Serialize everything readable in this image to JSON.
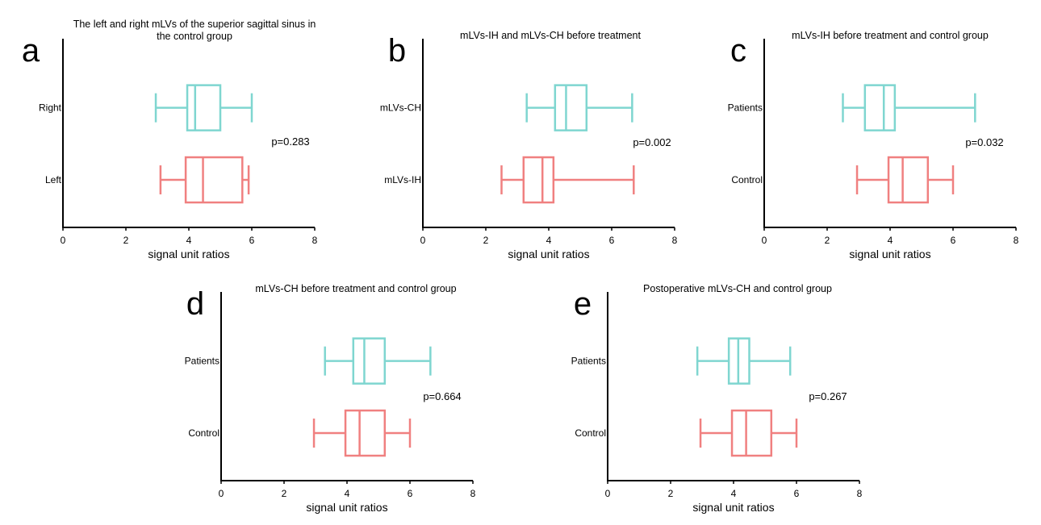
{
  "figure": {
    "description_type": "multi-panel horizontal box plots"
  },
  "colors": {
    "patients": "#7FD6D0",
    "control": "#F08080"
  },
  "chart_data": [
    {
      "panel": "a",
      "type": "boxplot",
      "title": "The left and right mLVs of the superior sagittal sinus in the control group",
      "title_lines": [
        "The left and right mLVs of the superior sagittal sinus in",
        "the control group"
      ],
      "xlabel": "signal unit ratios",
      "ylabel": "",
      "xlim": [
        0,
        8
      ],
      "xticks": [
        "0",
        "2",
        "4",
        "6",
        "8"
      ],
      "p_value": "p=0.283",
      "categories": [
        {
          "label": "Right",
          "color_key": "patients",
          "min": 2.95,
          "q1": 3.95,
          "median": 4.2,
          "q3": 5.0,
          "max": 6.0
        },
        {
          "label": "Left",
          "color_key": "control",
          "min": 3.1,
          "q1": 3.9,
          "median": 4.45,
          "q3": 5.7,
          "max": 5.9
        }
      ]
    },
    {
      "panel": "b",
      "type": "boxplot",
      "title": "mLVs-IH and mLVs-CH before treatment",
      "title_lines": [
        "mLVs-IH and mLVs-CH before treatment"
      ],
      "xlabel": "signal unit ratios",
      "ylabel": "",
      "xlim": [
        0,
        8
      ],
      "xticks": [
        "0",
        "2",
        "4",
        "6",
        "8"
      ],
      "p_value": "p=0.002",
      "categories": [
        {
          "label": "mLVs-CH",
          "color_key": "patients",
          "min": 3.3,
          "q1": 4.2,
          "median": 4.55,
          "q3": 5.2,
          "max": 6.65
        },
        {
          "label": "mLVs-IH",
          "color_key": "control",
          "min": 2.5,
          "q1": 3.2,
          "median": 3.8,
          "q3": 4.15,
          "max": 6.7
        }
      ]
    },
    {
      "panel": "c",
      "type": "boxplot",
      "title": "mLVs-IH before treatment and control group",
      "title_lines": [
        "mLVs-IH before treatment and control group"
      ],
      "xlabel": "signal unit ratios",
      "ylabel": "",
      "xlim": [
        0,
        8
      ],
      "xticks": [
        "0",
        "2",
        "4",
        "6",
        "8"
      ],
      "p_value": "p=0.032",
      "categories": [
        {
          "label": "Patients",
          "color_key": "patients",
          "min": 2.5,
          "q1": 3.2,
          "median": 3.8,
          "q3": 4.15,
          "max": 6.7
        },
        {
          "label": "Control",
          "color_key": "control",
          "min": 2.95,
          "q1": 3.95,
          "median": 4.4,
          "q3": 5.2,
          "max": 6.0
        }
      ]
    },
    {
      "panel": "d",
      "type": "boxplot",
      "title": "mLVs-CH before treatment and control group",
      "title_lines": [
        "mLVs-CH before treatment and control group"
      ],
      "xlabel": "signal unit ratios",
      "ylabel": "",
      "xlim": [
        0,
        8
      ],
      "xticks": [
        "0",
        "2",
        "4",
        "6",
        "8"
      ],
      "p_value": "p=0.664",
      "categories": [
        {
          "label": "Patients",
          "color_key": "patients",
          "min": 3.3,
          "q1": 4.2,
          "median": 4.55,
          "q3": 5.2,
          "max": 6.65
        },
        {
          "label": "Control",
          "color_key": "control",
          "min": 2.95,
          "q1": 3.95,
          "median": 4.4,
          "q3": 5.2,
          "max": 6.0
        }
      ]
    },
    {
      "panel": "e",
      "type": "boxplot",
      "title": "Postoperative mLVs-CH and control group",
      "title_lines": [
        "Postoperative mLVs-CH and control group"
      ],
      "xlabel": "signal unit ratios",
      "ylabel": "",
      "xlim": [
        0,
        8
      ],
      "xticks": [
        "0",
        "2",
        "4",
        "6",
        "8"
      ],
      "p_value": "p=0.267",
      "categories": [
        {
          "label": "Patients",
          "color_key": "patients",
          "min": 2.85,
          "q1": 3.85,
          "median": 4.15,
          "q3": 4.5,
          "max": 5.8
        },
        {
          "label": "Control",
          "color_key": "control",
          "min": 2.95,
          "q1": 3.95,
          "median": 4.4,
          "q3": 5.2,
          "max": 6.0
        }
      ]
    }
  ]
}
